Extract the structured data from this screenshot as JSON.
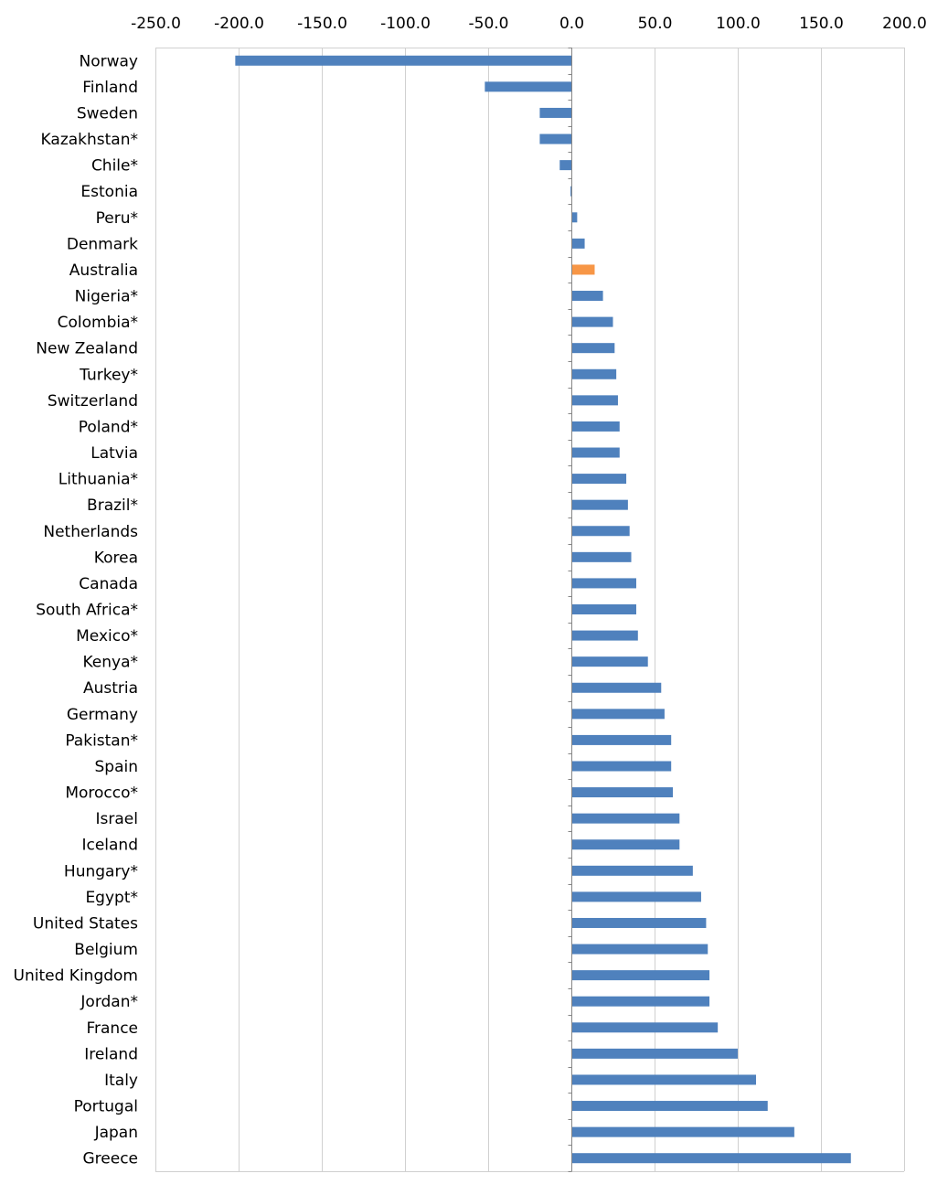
{
  "chart_data": {
    "type": "bar",
    "orientation": "horizontal",
    "title": "",
    "xlabel": "",
    "ylabel": "",
    "xlim": [
      -250,
      200
    ],
    "x_ticks": [
      -250,
      -200,
      -150,
      -100,
      -50,
      0,
      50,
      100,
      150,
      200
    ],
    "x_tick_labels": [
      "-250.0",
      "-200.0",
      "-150.0",
      "-100.0",
      "-50.0",
      "0.0",
      "50.0",
      "100.0",
      "150.0",
      "200.0"
    ],
    "axis_position": "top",
    "grid": true,
    "colors": {
      "default": "#4F81BD",
      "highlight": "#F79646",
      "grid": "#D0D0D0",
      "axis": "#868686"
    },
    "highlight_category": "Australia",
    "categories": [
      "Norway",
      "Finland",
      "Sweden",
      "Kazakhstan*",
      "Chile*",
      "Estonia",
      "Peru*",
      "Denmark",
      "Australia",
      "Nigeria*",
      "Colombia*",
      "New Zealand",
      "Turkey*",
      "Switzerland",
      "Poland*",
      "Latvia",
      "Lithuania*",
      "Brazil*",
      "Netherlands",
      "Korea",
      "Canada",
      "South Africa*",
      "Mexico*",
      "Kenya*",
      "Austria",
      "Germany",
      "Pakistan*",
      "Spain",
      "Morocco*",
      "Israel",
      "Iceland",
      "Hungary*",
      "Egypt*",
      "United States",
      "Belgium",
      "United Kingdom",
      "Jordan*",
      "France",
      "Ireland",
      "Italy",
      "Portugal",
      "Japan",
      "Greece"
    ],
    "values": [
      -202,
      -52,
      -19,
      -19,
      -7,
      -0.5,
      3.5,
      8,
      14,
      19,
      25,
      26,
      27,
      28,
      29,
      29,
      33,
      34,
      35,
      36,
      39,
      39,
      40,
      46,
      54,
      56,
      60,
      60,
      61,
      65,
      65,
      73,
      78,
      81,
      82,
      83,
      83,
      88,
      100,
      111,
      118,
      134,
      168
    ]
  }
}
